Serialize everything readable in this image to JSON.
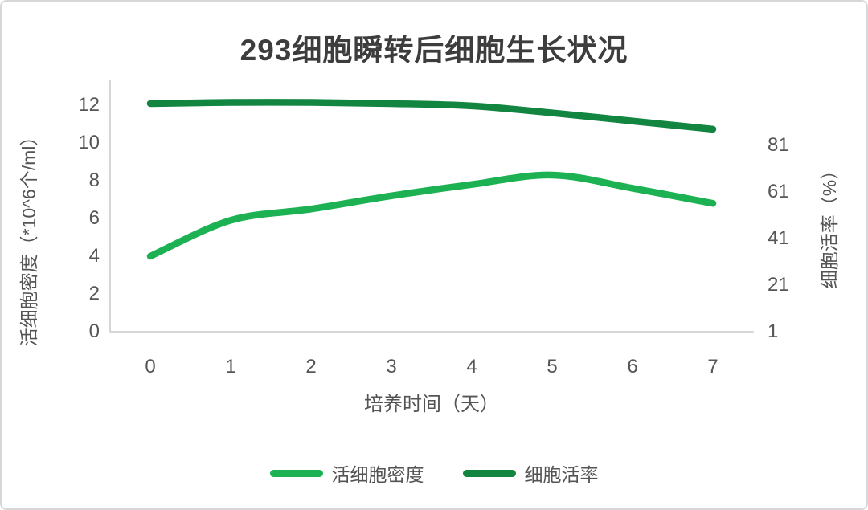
{
  "chart_data": {
    "type": "line",
    "title": "293细胞瞬转后细胞生长状况",
    "xlabel": "培养时间（天）",
    "ylabel_left": "活细胞密度（*10^6个/ml）",
    "ylabel_right": "细胞活率（%）",
    "x": [
      0,
      1,
      2,
      3,
      4,
      5,
      6,
      7
    ],
    "left_axis": {
      "min": 0,
      "max": 12,
      "ticks": [
        0,
        2,
        4,
        6,
        8,
        10,
        12
      ]
    },
    "right_axis": {
      "min": 1,
      "display_max": 109,
      "ticks": [
        1,
        21,
        41,
        61,
        81
      ]
    },
    "series": [
      {
        "name": "活细胞密度",
        "axis": "left",
        "color": "#1cb152",
        "values": [
          4.0,
          5.9,
          6.5,
          7.2,
          7.8,
          8.3,
          7.6,
          6.8
        ]
      },
      {
        "name": "细胞活率",
        "axis": "right",
        "color": "#128540",
        "values": [
          99,
          99.5,
          99.5,
          99,
          98,
          95,
          91.5,
          88
        ]
      }
    ],
    "grid": false,
    "smoothed": true,
    "legend_position": "bottom"
  },
  "colors": {
    "axis_line": "#d6d6d6",
    "text": "#545454",
    "title_text": "#3d3d3d"
  }
}
